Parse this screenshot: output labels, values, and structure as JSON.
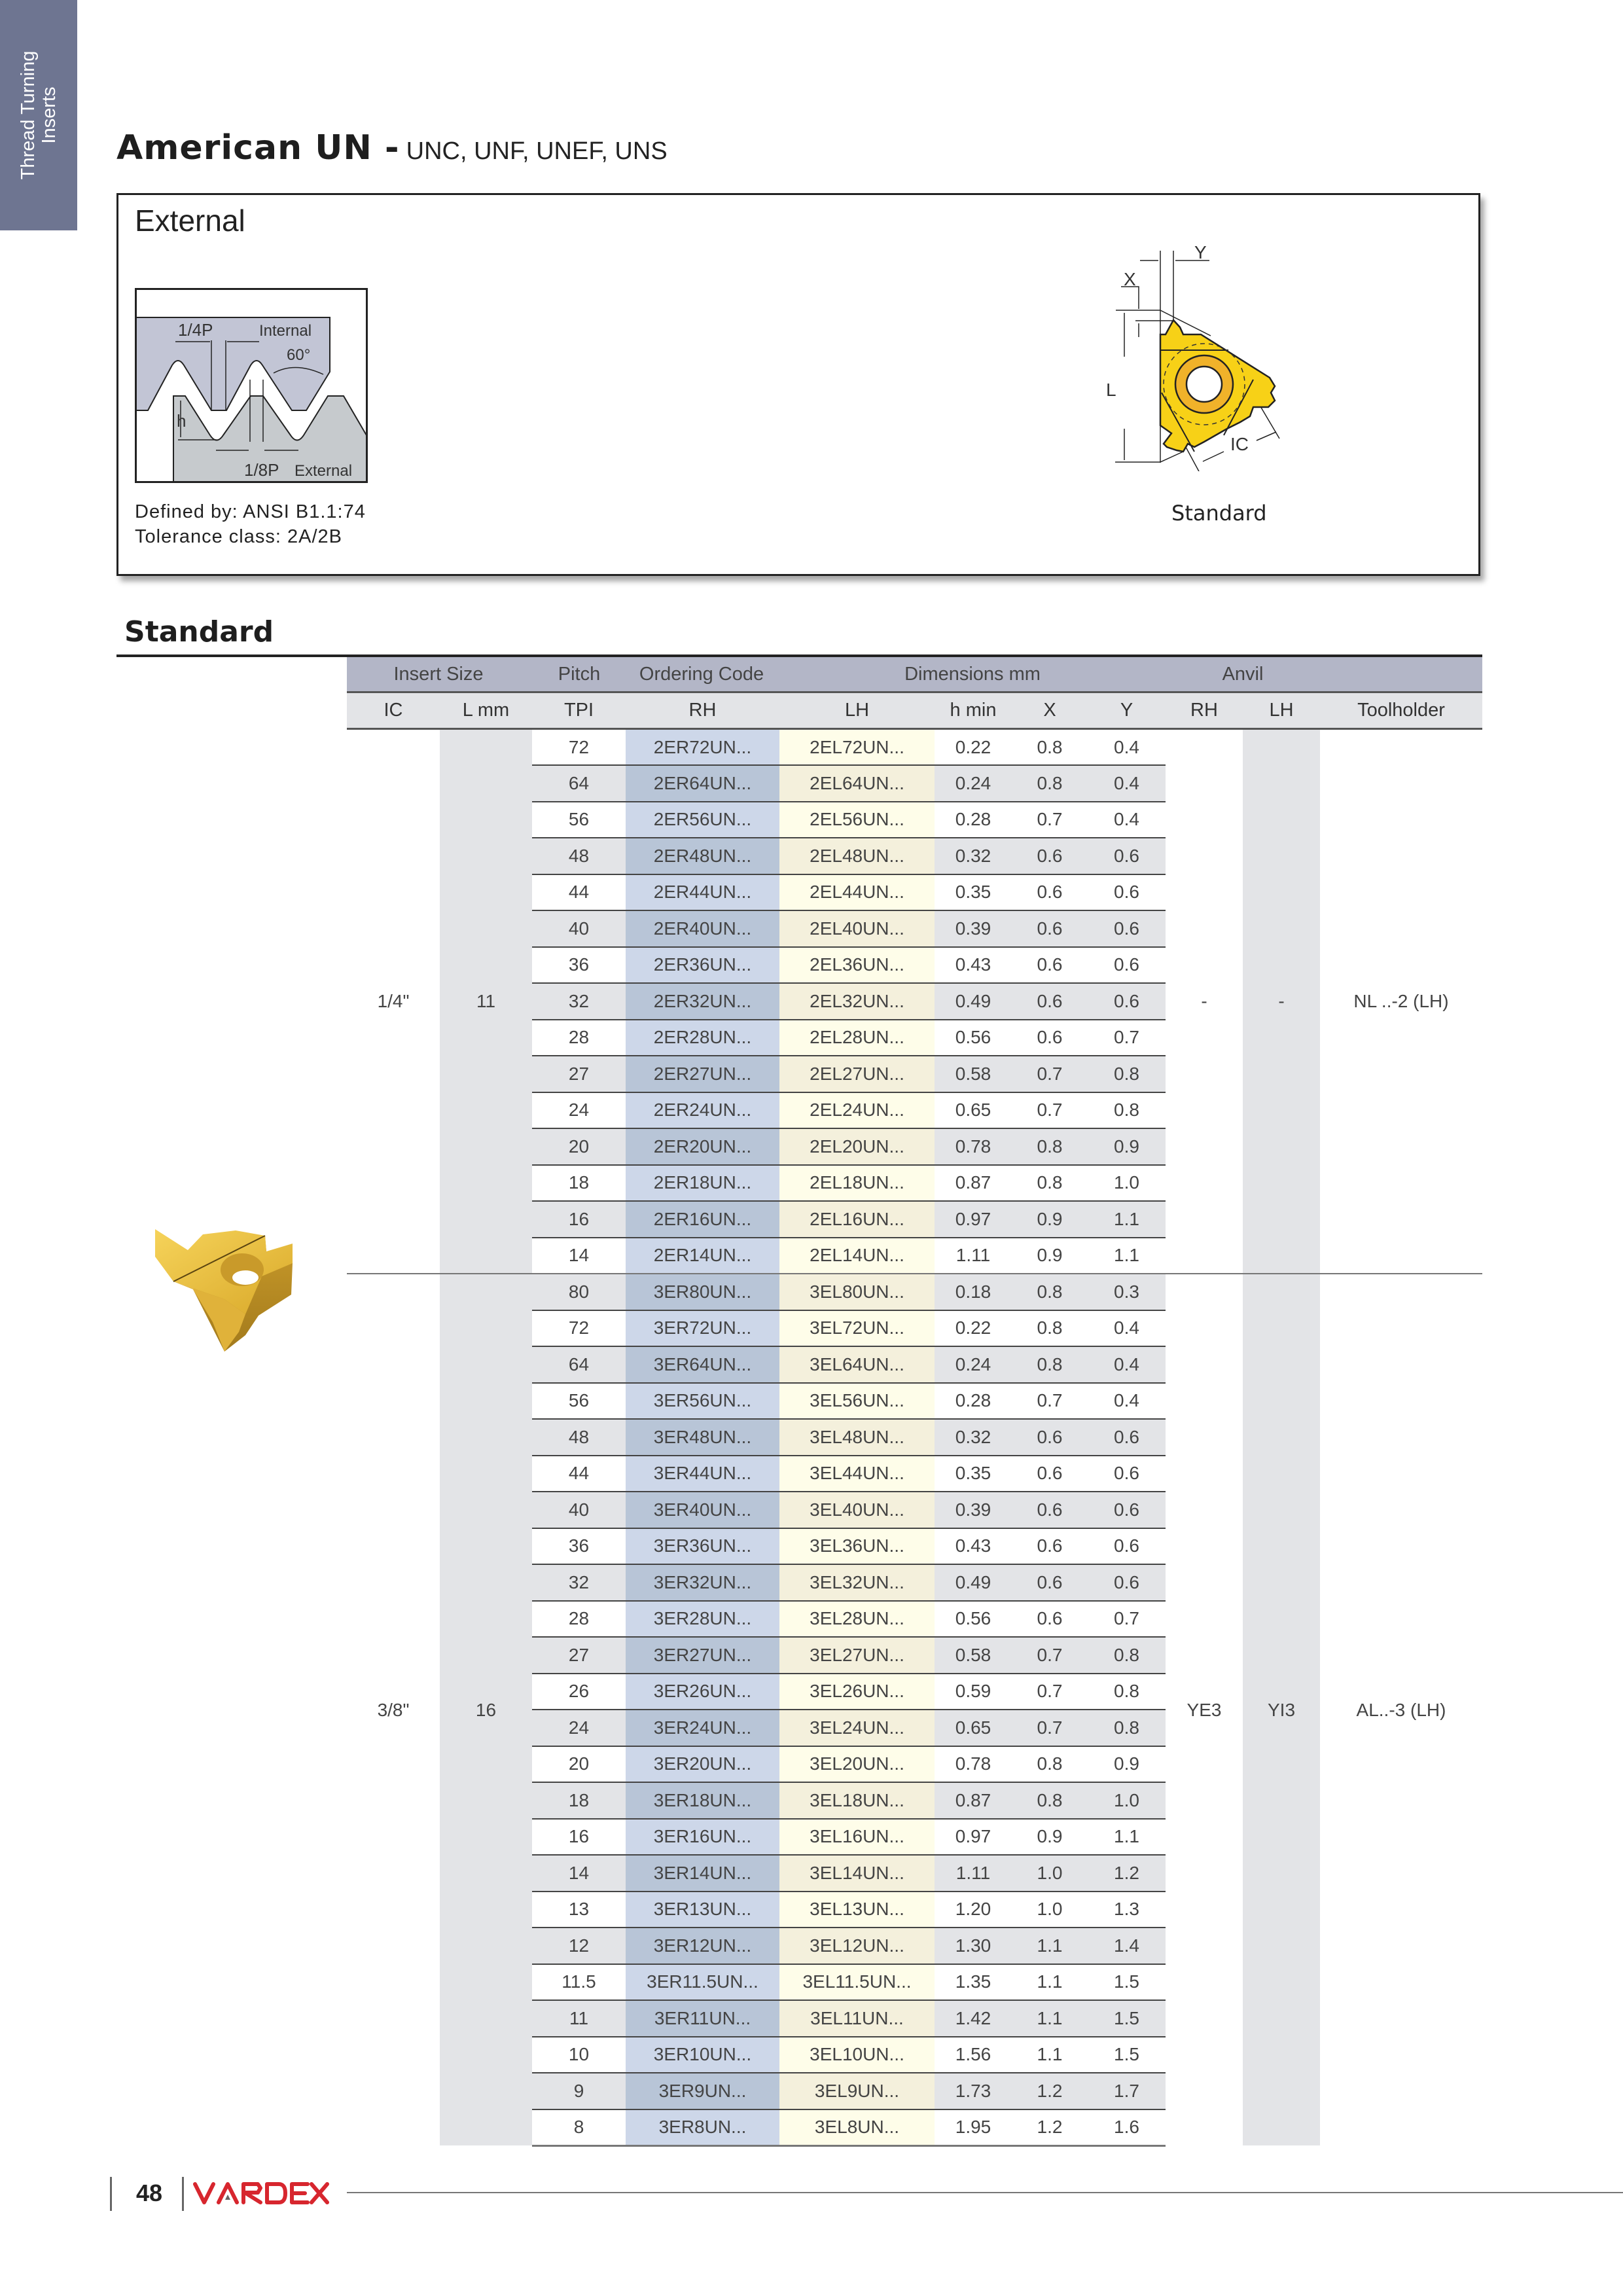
{
  "side_tab": {
    "line1": "Thread Turning",
    "line2": "Inserts"
  },
  "title": {
    "main": "American UN -",
    "sub": "UNC, UNF, UNEF, UNS"
  },
  "external_box": {
    "title": "External",
    "diagram_labels": {
      "quarter_p": "1/4P",
      "internal": "Internal",
      "angle": "60°",
      "h": "h",
      "eighth_p": "1/8P",
      "external": "External"
    },
    "defined_by": "Defined by: ANSI B1.1:74",
    "tolerance": "Tolerance class: 2A/2B",
    "insert_labels": {
      "x": "X",
      "y": "Y",
      "l": "L",
      "ic": "IC"
    },
    "insert_caption": "Standard"
  },
  "section_heading": "Standard",
  "table": {
    "group_headers": [
      "Insert Size",
      "Pitch",
      "Ordering Code",
      "Dimensions mm",
      "Anvil"
    ],
    "columns": [
      "IC",
      "L mm",
      "TPI",
      "RH",
      "LH",
      "h min",
      "X",
      "Y",
      "RH",
      "LH",
      "Toolholder"
    ],
    "groups": [
      {
        "ic": "1/4\"",
        "l": "11",
        "anvil_rh": "-",
        "anvil_lh": "-",
        "toolholder": "NL ..-2 (LH)",
        "rows": [
          [
            "72",
            "2ER72UN...",
            "2EL72UN...",
            "0.22",
            "0.8",
            "0.4"
          ],
          [
            "64",
            "2ER64UN...",
            "2EL64UN...",
            "0.24",
            "0.8",
            "0.4"
          ],
          [
            "56",
            "2ER56UN...",
            "2EL56UN...",
            "0.28",
            "0.7",
            "0.4"
          ],
          [
            "48",
            "2ER48UN...",
            "2EL48UN...",
            "0.32",
            "0.6",
            "0.6"
          ],
          [
            "44",
            "2ER44UN...",
            "2EL44UN...",
            "0.35",
            "0.6",
            "0.6"
          ],
          [
            "40",
            "2ER40UN...",
            "2EL40UN...",
            "0.39",
            "0.6",
            "0.6"
          ],
          [
            "36",
            "2ER36UN...",
            "2EL36UN...",
            "0.43",
            "0.6",
            "0.6"
          ],
          [
            "32",
            "2ER32UN...",
            "2EL32UN...",
            "0.49",
            "0.6",
            "0.6"
          ],
          [
            "28",
            "2ER28UN...",
            "2EL28UN...",
            "0.56",
            "0.6",
            "0.7"
          ],
          [
            "27",
            "2ER27UN...",
            "2EL27UN...",
            "0.58",
            "0.7",
            "0.8"
          ],
          [
            "24",
            "2ER24UN...",
            "2EL24UN...",
            "0.65",
            "0.7",
            "0.8"
          ],
          [
            "20",
            "2ER20UN...",
            "2EL20UN...",
            "0.78",
            "0.8",
            "0.9"
          ],
          [
            "18",
            "2ER18UN...",
            "2EL18UN...",
            "0.87",
            "0.8",
            "1.0"
          ],
          [
            "16",
            "2ER16UN...",
            "2EL16UN...",
            "0.97",
            "0.9",
            "1.1"
          ],
          [
            "14",
            "2ER14UN...",
            "2EL14UN...",
            "1.11",
            "0.9",
            "1.1"
          ]
        ]
      },
      {
        "ic": "3/8\"",
        "l": "16",
        "anvil_rh": "YE3",
        "anvil_lh": "YI3",
        "toolholder": "AL..-3 (LH)",
        "rows": [
          [
            "80",
            "3ER80UN...",
            "3EL80UN...",
            "0.18",
            "0.8",
            "0.3"
          ],
          [
            "72",
            "3ER72UN...",
            "3EL72UN...",
            "0.22",
            "0.8",
            "0.4"
          ],
          [
            "64",
            "3ER64UN...",
            "3EL64UN...",
            "0.24",
            "0.8",
            "0.4"
          ],
          [
            "56",
            "3ER56UN...",
            "3EL56UN...",
            "0.28",
            "0.7",
            "0.4"
          ],
          [
            "48",
            "3ER48UN...",
            "3EL48UN...",
            "0.32",
            "0.6",
            "0.6"
          ],
          [
            "44",
            "3ER44UN...",
            "3EL44UN...",
            "0.35",
            "0.6",
            "0.6"
          ],
          [
            "40",
            "3ER40UN...",
            "3EL40UN...",
            "0.39",
            "0.6",
            "0.6"
          ],
          [
            "36",
            "3ER36UN...",
            "3EL36UN...",
            "0.43",
            "0.6",
            "0.6"
          ],
          [
            "32",
            "3ER32UN...",
            "3EL32UN...",
            "0.49",
            "0.6",
            "0.6"
          ],
          [
            "28",
            "3ER28UN...",
            "3EL28UN...",
            "0.56",
            "0.6",
            "0.7"
          ],
          [
            "27",
            "3ER27UN...",
            "3EL27UN...",
            "0.58",
            "0.7",
            "0.8"
          ],
          [
            "26",
            "3ER26UN...",
            "3EL26UN...",
            "0.59",
            "0.7",
            "0.8"
          ],
          [
            "24",
            "3ER24UN...",
            "3EL24UN...",
            "0.65",
            "0.7",
            "0.8"
          ],
          [
            "20",
            "3ER20UN...",
            "3EL20UN...",
            "0.78",
            "0.8",
            "0.9"
          ],
          [
            "18",
            "3ER18UN...",
            "3EL18UN...",
            "0.87",
            "0.8",
            "1.0"
          ],
          [
            "16",
            "3ER16UN...",
            "3EL16UN...",
            "0.97",
            "0.9",
            "1.1"
          ],
          [
            "14",
            "3ER14UN...",
            "3EL14UN...",
            "1.11",
            "1.0",
            "1.2"
          ],
          [
            "13",
            "3ER13UN...",
            "3EL13UN...",
            "1.20",
            "1.0",
            "1.3"
          ],
          [
            "12",
            "3ER12UN...",
            "3EL12UN...",
            "1.30",
            "1.1",
            "1.4"
          ],
          [
            "11.5",
            "3ER11.5UN...",
            "3EL11.5UN...",
            "1.35",
            "1.1",
            "1.5"
          ],
          [
            "11",
            "3ER11UN...",
            "3EL11UN...",
            "1.42",
            "1.1",
            "1.5"
          ],
          [
            "10",
            "3ER10UN...",
            "3EL10UN...",
            "1.56",
            "1.1",
            "1.5"
          ],
          [
            "9",
            "3ER9UN...",
            "3EL9UN...",
            "1.73",
            "1.2",
            "1.7"
          ],
          [
            "8",
            "3ER8UN...",
            "3EL8UN...",
            "1.95",
            "1.2",
            "1.6"
          ]
        ]
      }
    ]
  },
  "footer": {
    "page_number": "48",
    "logo": "VARDEX"
  },
  "colors": {
    "side_tab": "#6e7591",
    "header_band": "#b3b6c7",
    "rh_column": "#cdd7e9",
    "lh_column": "#fefde9",
    "insert_yellow": "#f7d117",
    "logo_red": "#d7262e"
  }
}
